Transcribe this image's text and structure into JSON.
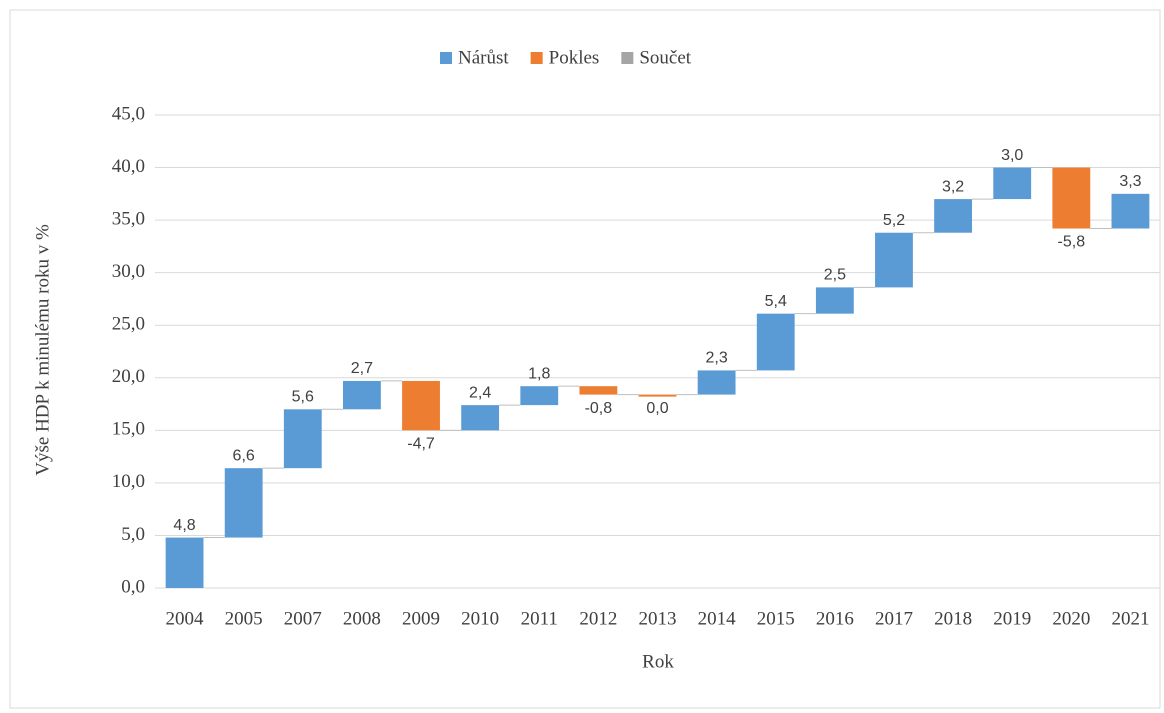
{
  "chart_data": {
    "type": "waterfall",
    "x_label": "Rok",
    "y_label": "Výše HDP k minulému roku v %",
    "legend": [
      {
        "name": "Nárůst",
        "color": "#5b9bd5"
      },
      {
        "name": "Pokles",
        "color": "#ed7d31"
      },
      {
        "name": "Součet",
        "color": "#a5a5a5"
      }
    ],
    "legend_position": "top",
    "categories": [
      "2004",
      "2005",
      "2007",
      "2008",
      "2009",
      "2010",
      "2011",
      "2012",
      "2013",
      "2014",
      "2015",
      "2016",
      "2017",
      "2018",
      "2019",
      "2020",
      "2021"
    ],
    "values": [
      4.8,
      6.6,
      5.6,
      2.7,
      -4.7,
      2.4,
      1.8,
      -0.8,
      0.0,
      2.3,
      5.4,
      2.5,
      5.2,
      3.2,
      3.0,
      -5.8,
      3.3
    ],
    "value_labels": [
      "4,8",
      "6,6",
      "5,6",
      "2,7",
      "-4,7",
      "2,4",
      "1,8",
      "-0,8",
      "0,0",
      "2,3",
      "5,4",
      "2,5",
      "5,2",
      "3,2",
      "3,0",
      "-5,8",
      "3,3"
    ],
    "colors": [
      "#5b9bd5",
      "#5b9bd5",
      "#5b9bd5",
      "#5b9bd5",
      "#ed7d31",
      "#5b9bd5",
      "#5b9bd5",
      "#ed7d31",
      "#ed7d31",
      "#5b9bd5",
      "#5b9bd5",
      "#5b9bd5",
      "#5b9bd5",
      "#5b9bd5",
      "#5b9bd5",
      "#ed7d31",
      "#5b9bd5"
    ],
    "ylim": [
      0,
      45
    ],
    "yticks": [
      {
        "value": 0,
        "label": "0,0"
      },
      {
        "value": 5,
        "label": "5,0"
      },
      {
        "value": 10,
        "label": "10,0"
      },
      {
        "value": 15,
        "label": "15,0"
      },
      {
        "value": 20,
        "label": "20,0"
      },
      {
        "value": 25,
        "label": "25,0"
      },
      {
        "value": 30,
        "label": "30,0"
      },
      {
        "value": 35,
        "label": "35,0"
      },
      {
        "value": 40,
        "label": "40,0"
      },
      {
        "value": 45,
        "label": "45,0"
      }
    ],
    "grid": true
  }
}
